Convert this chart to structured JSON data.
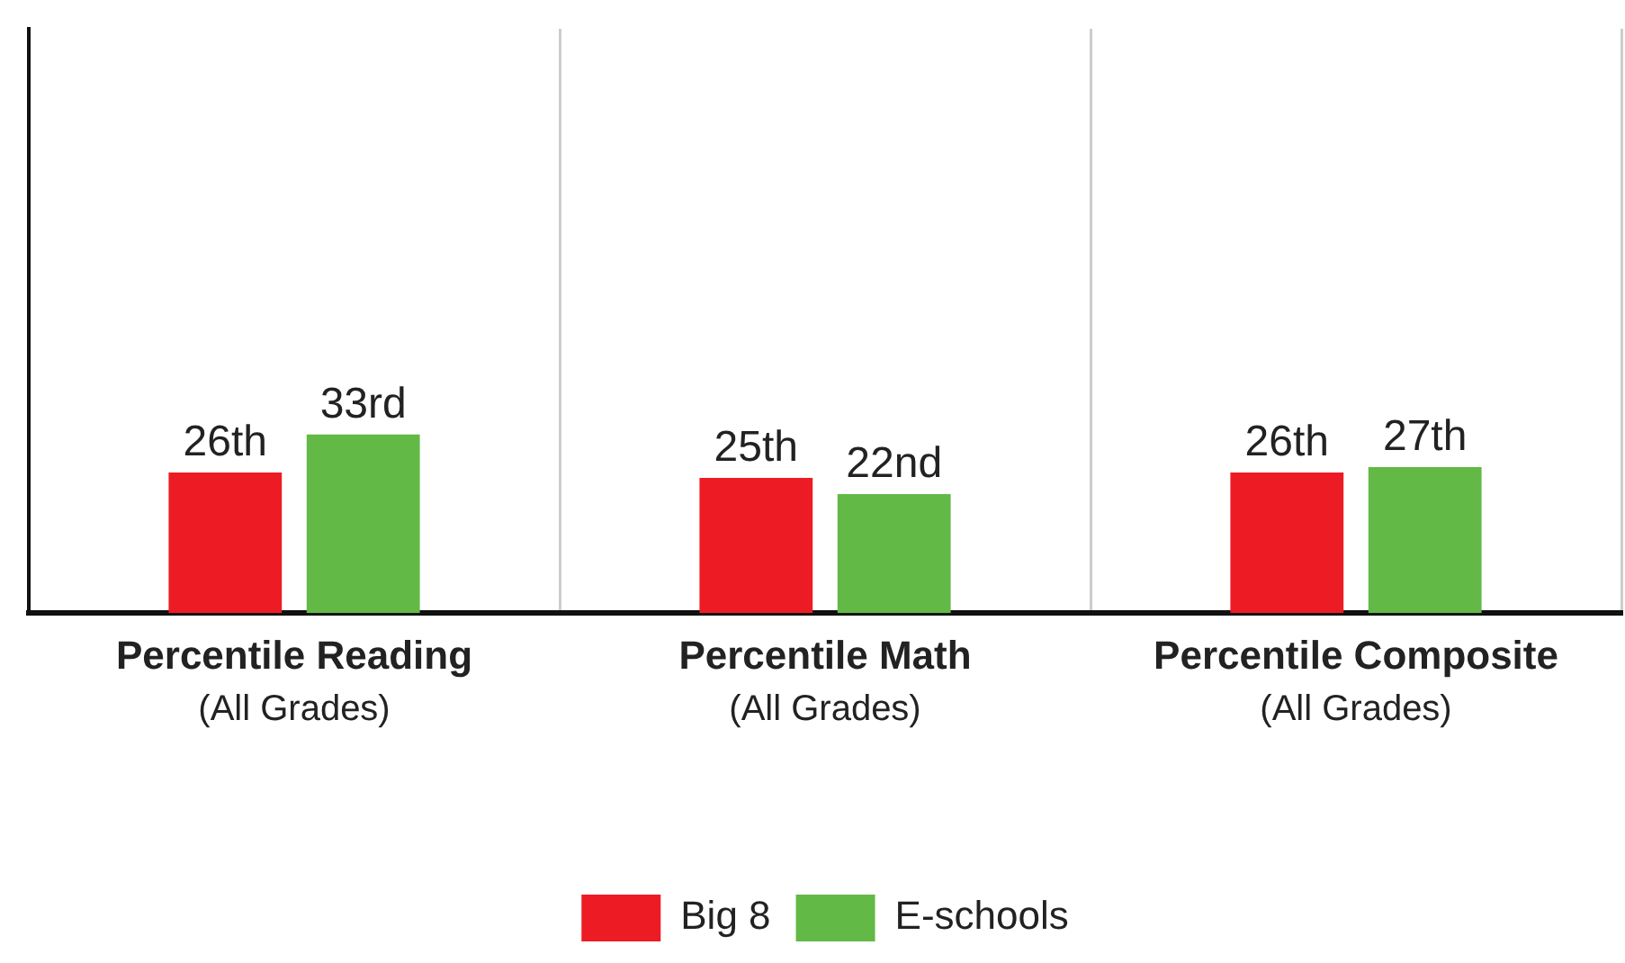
{
  "chart_data": {
    "type": "bar",
    "categories": [
      "Percentile Reading\n(All Grades)",
      "Percentile Math\n(All Grades)",
      "Percentile Composite\n(All Grades)"
    ],
    "series": [
      {
        "name": "Big 8",
        "color": "#ed1c24",
        "values": [
          26,
          25,
          26
        ],
        "value_labels": [
          "26th",
          "25th",
          "26th"
        ]
      },
      {
        "name": "E-schools",
        "color": "#62b946",
        "values": [
          33,
          22,
          27
        ],
        "value_labels": [
          "33rd",
          "22nd",
          "27th"
        ]
      }
    ],
    "ylim": [
      0,
      108
    ],
    "grid": "x",
    "legend": "bottom"
  }
}
